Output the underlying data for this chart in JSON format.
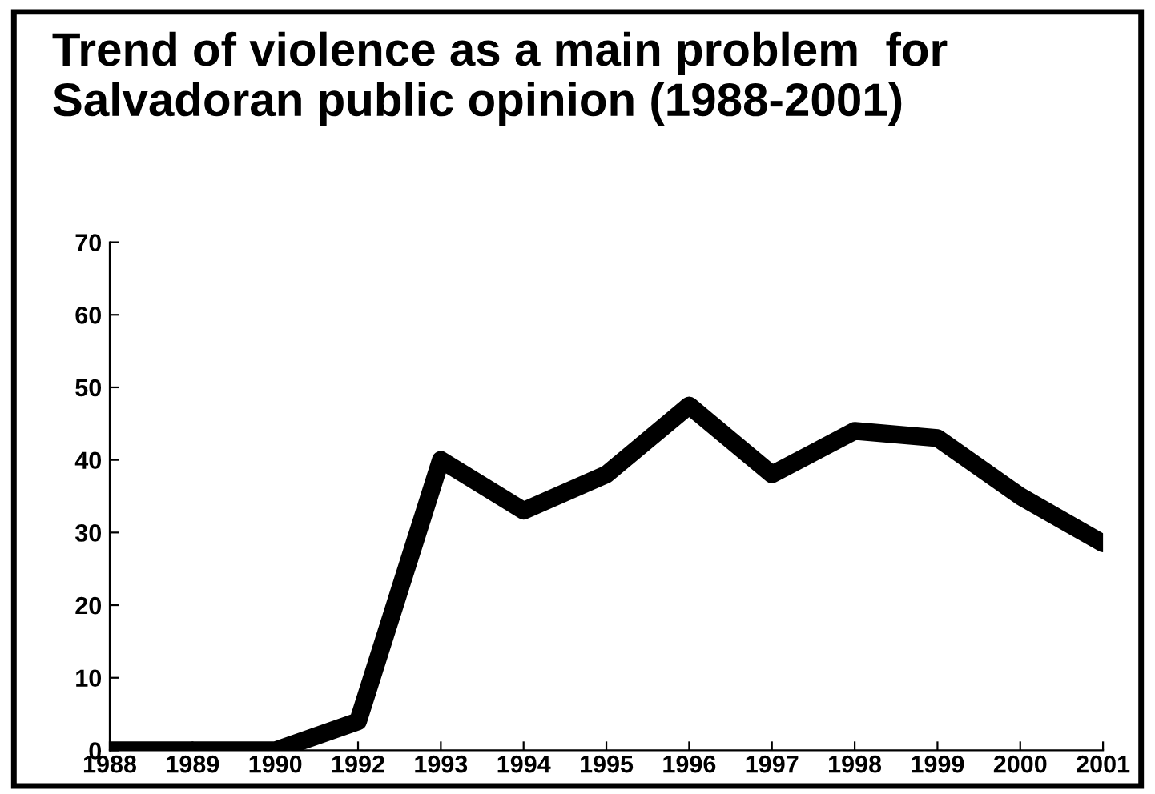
{
  "chart_data": {
    "type": "line",
    "title": "Trend of violence as a main problem  for\nSalvadoran public opinion (1988-2001)",
    "categories": [
      "1988",
      "1989",
      "1990",
      "1992",
      "1993",
      "1994",
      "1995",
      "1996",
      "1997",
      "1998",
      "1999",
      "2000",
      "2001"
    ],
    "series": [
      {
        "color": "#000000",
        "values": [
          0,
          0,
          0,
          4,
          40,
          33,
          38,
          47.5,
          38,
          44,
          43,
          35,
          28.5
        ]
      }
    ],
    "ylim": [
      0,
      70
    ],
    "yticks": [
      0,
      10,
      20,
      30,
      40,
      50,
      60,
      70
    ],
    "grid": false,
    "legend": false,
    "marker": "none",
    "line_style": "solid"
  }
}
